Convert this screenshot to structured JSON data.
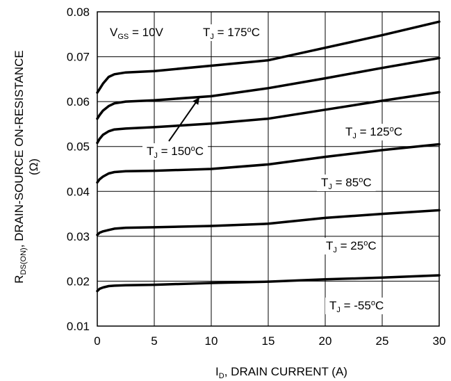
{
  "chart_data": {
    "type": "line",
    "title": "",
    "xlabel": {
      "main": "I",
      "sub": "D",
      "rest": ", DRAIN CURRENT (A)"
    },
    "ylabel": {
      "line1_main": "R",
      "line1_sub": "DS(ON)",
      "line1_rest": ",   DRAIN-SOURCE ON-RESISTANCE",
      "line2": "(Ω)"
    },
    "xlim": [
      0,
      30
    ],
    "ylim": [
      0.01,
      0.08
    ],
    "x_ticks": [
      "0",
      "5",
      "10",
      "15",
      "20",
      "25",
      "30"
    ],
    "y_ticks": [
      "0.01",
      "0.02",
      "0.03",
      "0.04",
      "0.05",
      "0.06",
      "0.07",
      "0.08"
    ],
    "grid": true,
    "condition": {
      "main": "V",
      "sub": "GS",
      "rest": " = 10V"
    },
    "series": [
      {
        "name": "TJ = 175oC",
        "label": {
          "main": "T",
          "sub": "J",
          "value": " = 175",
          "sup": "o",
          "unit": "C"
        },
        "points": [
          [
            0,
            0.062
          ],
          [
            0.2,
            0.0628
          ],
          [
            0.5,
            0.064
          ],
          [
            1,
            0.0655
          ],
          [
            1.5,
            0.0661
          ],
          [
            2.5,
            0.0665
          ],
          [
            5,
            0.0668
          ],
          [
            10,
            0.068
          ],
          [
            15,
            0.0692
          ],
          [
            20,
            0.072
          ],
          [
            25,
            0.0748
          ],
          [
            30,
            0.0778
          ]
        ]
      },
      {
        "name": "TJ = 150oC",
        "label": {
          "main": "T",
          "sub": "J",
          "value": " = 150",
          "sup": "o",
          "unit": "C"
        },
        "points": [
          [
            0,
            0.0562
          ],
          [
            0.2,
            0.057
          ],
          [
            0.5,
            0.058
          ],
          [
            1,
            0.059
          ],
          [
            1.5,
            0.0596
          ],
          [
            2.5,
            0.06
          ],
          [
            5,
            0.0603
          ],
          [
            10,
            0.0612
          ],
          [
            15,
            0.063
          ],
          [
            20,
            0.0652
          ],
          [
            25,
            0.0675
          ],
          [
            30,
            0.0697
          ]
        ]
      },
      {
        "name": "TJ = 125oC",
        "label": {
          "main": "T",
          "sub": "J",
          "value": " = 125",
          "sup": "o",
          "unit": "C"
        },
        "points": [
          [
            0,
            0.0508
          ],
          [
            0.2,
            0.0517
          ],
          [
            0.5,
            0.0526
          ],
          [
            1,
            0.0534
          ],
          [
            1.5,
            0.0538
          ],
          [
            2.5,
            0.054
          ],
          [
            5,
            0.0543
          ],
          [
            10,
            0.0551
          ],
          [
            15,
            0.0562
          ],
          [
            20,
            0.0582
          ],
          [
            25,
            0.0602
          ],
          [
            30,
            0.0621
          ]
        ]
      },
      {
        "name": "TJ = 85oC",
        "label": {
          "main": "T",
          "sub": "J",
          "value": " = 85",
          "sup": "o",
          "unit": "C"
        },
        "points": [
          [
            0,
            0.042
          ],
          [
            0.2,
            0.0427
          ],
          [
            0.5,
            0.0433
          ],
          [
            1,
            0.044
          ],
          [
            1.5,
            0.0443
          ],
          [
            2.5,
            0.0445
          ],
          [
            5,
            0.0446
          ],
          [
            10,
            0.045
          ],
          [
            15,
            0.046
          ],
          [
            20,
            0.0477
          ],
          [
            25,
            0.0492
          ],
          [
            30,
            0.0505
          ]
        ]
      },
      {
        "name": "TJ = 25oC",
        "label": {
          "main": "T",
          "sub": "J",
          "value": " = 25",
          "sup": "o",
          "unit": "C"
        },
        "points": [
          [
            0,
            0.0303
          ],
          [
            0.2,
            0.0308
          ],
          [
            0.5,
            0.0311
          ],
          [
            1,
            0.0314
          ],
          [
            1.5,
            0.0317
          ],
          [
            2.5,
            0.0319
          ],
          [
            5,
            0.032
          ],
          [
            10,
            0.0323
          ],
          [
            15,
            0.0328
          ],
          [
            20,
            0.0341
          ],
          [
            25,
            0.035
          ],
          [
            30,
            0.0358
          ]
        ]
      },
      {
        "name": "TJ = -55oC",
        "label": {
          "main": "T",
          "sub": "J",
          "value": " = -55",
          "sup": "o",
          "unit": "C"
        },
        "points": [
          [
            0,
            0.0178
          ],
          [
            0.2,
            0.0183
          ],
          [
            0.5,
            0.0186
          ],
          [
            1,
            0.0189
          ],
          [
            1.5,
            0.019
          ],
          [
            2.5,
            0.0191
          ],
          [
            5,
            0.0192
          ],
          [
            10,
            0.0196
          ],
          [
            15,
            0.0199
          ],
          [
            20,
            0.0204
          ],
          [
            25,
            0.0208
          ],
          [
            30,
            0.0213
          ]
        ]
      }
    ]
  }
}
